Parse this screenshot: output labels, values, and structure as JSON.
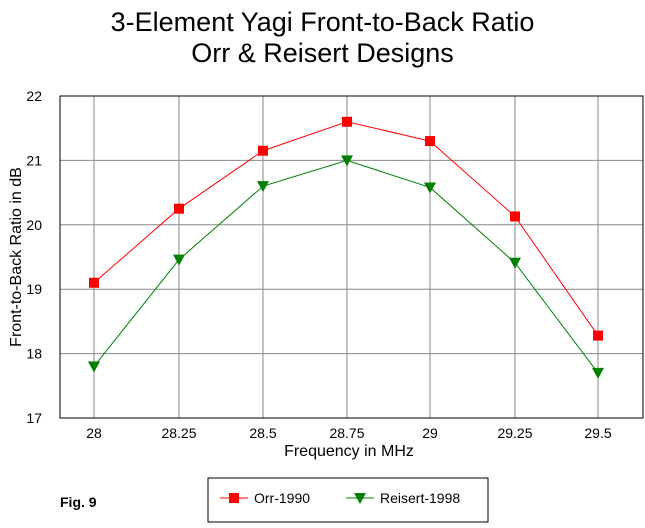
{
  "figure": {
    "label": "Fig. 9"
  },
  "chart_data": {
    "type": "line",
    "title": "3-Element Yagi Front-to-Back Ratio",
    "subtitle": "Orr & Reisert Designs",
    "xlabel": "Frequency in MHz",
    "ylabel": "Front-to-Back Ratio in dB",
    "categories": [
      "28",
      "28.25",
      "28.5",
      "28.75",
      "29",
      "29.25",
      "29.5"
    ],
    "x": [
      28,
      28.25,
      28.5,
      28.75,
      29,
      29.25,
      29.5
    ],
    "ylim": [
      17,
      22
    ],
    "yticks": [
      "17",
      "18",
      "19",
      "20",
      "21",
      "22"
    ],
    "grid": true,
    "legend_position": "bottom",
    "series": [
      {
        "name": "Orr-1990",
        "color": "#ff0000",
        "marker": "square",
        "values": [
          19.1,
          20.25,
          21.15,
          21.6,
          21.3,
          20.13,
          18.28
        ]
      },
      {
        "name": "Reisert-1998",
        "color": "#008000",
        "marker": "triangle-down",
        "values": [
          17.8,
          19.46,
          20.6,
          21.0,
          20.58,
          19.41,
          17.7
        ]
      }
    ]
  }
}
